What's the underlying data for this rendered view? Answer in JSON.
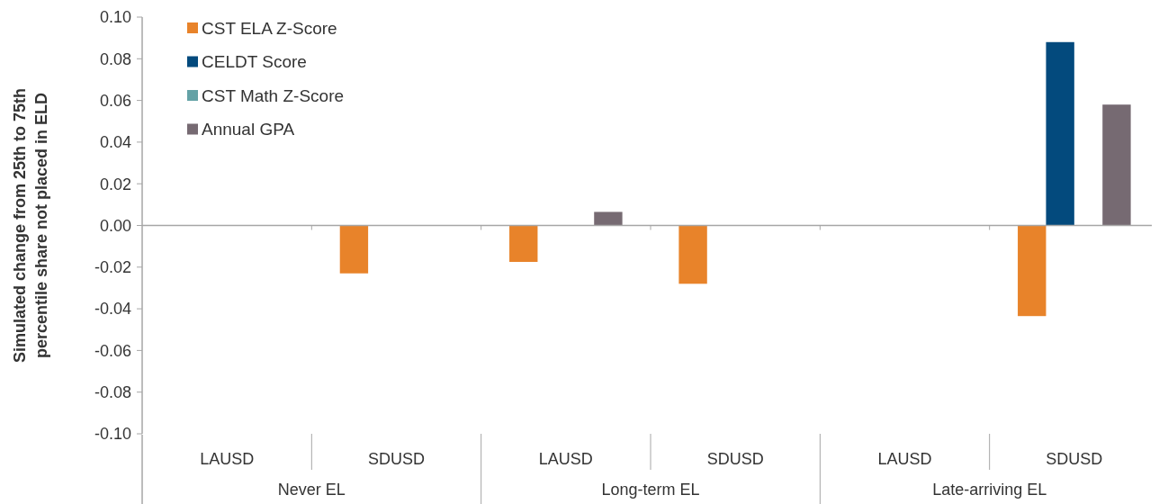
{
  "chart_data": {
    "type": "bar",
    "ylabel": "Simulated change from 25th to 75th percentile share not placed in ELD",
    "categories": [
      "LAUSD",
      "SDUSD",
      "LAUSD",
      "SDUSD",
      "LAUSD",
      "SDUSD"
    ],
    "series": [
      {
        "name": "CST ELA Z-Score",
        "color": "#e8832a",
        "values": [
          null,
          -0.023,
          -0.0175,
          -0.028,
          null,
          -0.0435
        ]
      },
      {
        "name": "CELDT Score",
        "color": "#034a7d",
        "values": [
          null,
          null,
          null,
          null,
          null,
          0.088
        ]
      },
      {
        "name": "CST Math Z-Score",
        "color": "#64a2a6",
        "values": [
          null,
          null,
          null,
          null,
          null,
          null
        ]
      },
      {
        "name": "Annual GPA",
        "color": "#766a72",
        "values": [
          null,
          null,
          0.0065,
          null,
          null,
          0.058
        ]
      }
    ],
    "annotations": [
      "Never EL",
      "Long-term EL",
      "Late-arriving EL"
    ],
    "ylim": [
      -0.1,
      0.1
    ],
    "yticks": [
      {
        "value": -0.1,
        "label": "-0.10"
      },
      {
        "value": -0.08,
        "label": "-0.08"
      },
      {
        "value": -0.06,
        "label": "-0.06"
      },
      {
        "value": -0.04,
        "label": "-0.04"
      },
      {
        "value": -0.02,
        "label": "-0.02"
      },
      {
        "value": 0,
        "label": "0.00"
      },
      {
        "value": 0.02,
        "label": "0.02"
      },
      {
        "value": 0.04,
        "label": "0.04"
      },
      {
        "value": 0.06,
        "label": "0.06"
      },
      {
        "value": 0.08,
        "label": "0.08"
      },
      {
        "value": 0.1,
        "label": "0.10"
      }
    ],
    "legend": "top left"
  }
}
